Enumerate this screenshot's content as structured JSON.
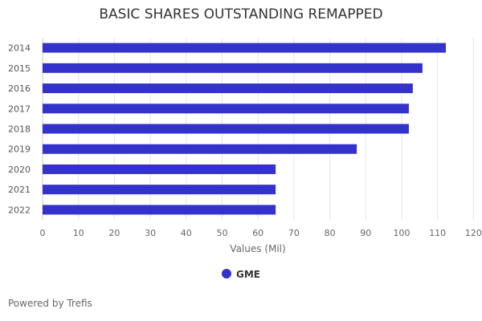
{
  "chart_data": {
    "type": "bar",
    "orientation": "horizontal",
    "title": "BASIC SHARES OUTSTANDING REMAPPED",
    "xlabel": "Values (Mil)",
    "ylabel": "",
    "categories": [
      "2014",
      "2015",
      "2016",
      "2017",
      "2018",
      "2019",
      "2020",
      "2021",
      "2022"
    ],
    "series": [
      {
        "name": "GME",
        "values": [
          112.3,
          105.8,
          103.1,
          102.0,
          102.0,
          87.5,
          64.9,
          64.9,
          64.9
        ],
        "color": "#3333cc"
      }
    ],
    "xlim": [
      0,
      120
    ],
    "xticks": [
      0,
      10,
      20,
      30,
      40,
      50,
      60,
      70,
      80,
      90,
      100,
      110,
      120
    ],
    "grid": true,
    "legend": "bottom"
  },
  "footer": "Powered by Trefis"
}
